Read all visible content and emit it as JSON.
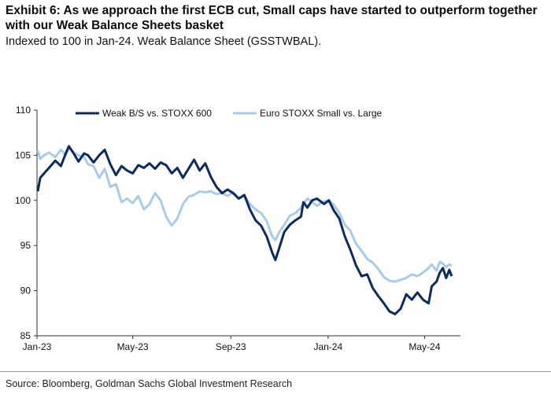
{
  "header": {
    "title": "Exhibit 6: As we approach the first ECB cut, Small caps have started to outperform together with our Weak Balance Sheets basket",
    "subtitle": "Indexed to 100 in Jan-24. Weak Balance Sheet (GSSTWBAL)."
  },
  "footer": {
    "source": "Source: Bloomberg, Goldman Sachs Global Investment Research"
  },
  "chart_data": {
    "type": "line",
    "title": "",
    "xlabel": "",
    "ylabel": "",
    "x_tick_labels": [
      "Jan-23",
      "May-23",
      "Sep-23",
      "Jan-24",
      "May-24"
    ],
    "y_ticks": [
      85,
      90,
      95,
      100,
      105,
      110
    ],
    "ylim": [
      85,
      110
    ],
    "xlim": [
      "2023-01-01",
      "2024-06-15"
    ],
    "grid": false,
    "legend_position": "top-left",
    "series": [
      {
        "name": "Weak B/S vs. STOXX 600",
        "color": "#0d2b5c",
        "points": [
          [
            "2023-01-02",
            101.0
          ],
          [
            "2023-01-05",
            102.5
          ],
          [
            "2023-01-10",
            103.0
          ],
          [
            "2023-01-16",
            103.6
          ],
          [
            "2023-01-24",
            104.4
          ],
          [
            "2023-01-31",
            103.8
          ],
          [
            "2023-02-06",
            105.2
          ],
          [
            "2023-02-10",
            106.0
          ],
          [
            "2023-02-16",
            105.2
          ],
          [
            "2023-02-22",
            104.3
          ],
          [
            "2023-03-01",
            105.2
          ],
          [
            "2023-03-06",
            105.0
          ],
          [
            "2023-03-13",
            104.2
          ],
          [
            "2023-03-20",
            105.0
          ],
          [
            "2023-03-27",
            105.6
          ],
          [
            "2023-04-03",
            104.0
          ],
          [
            "2023-04-10",
            102.8
          ],
          [
            "2023-04-17",
            103.8
          ],
          [
            "2023-04-24",
            103.3
          ],
          [
            "2023-05-01",
            103.0
          ],
          [
            "2023-05-08",
            103.9
          ],
          [
            "2023-05-15",
            103.6
          ],
          [
            "2023-05-22",
            104.1
          ],
          [
            "2023-05-29",
            103.5
          ],
          [
            "2023-06-05",
            104.2
          ],
          [
            "2023-06-12",
            103.9
          ],
          [
            "2023-06-19",
            103.0
          ],
          [
            "2023-06-26",
            103.6
          ],
          [
            "2023-07-03",
            102.5
          ],
          [
            "2023-07-10",
            103.5
          ],
          [
            "2023-07-17",
            104.5
          ],
          [
            "2023-07-24",
            103.3
          ],
          [
            "2023-07-31",
            104.1
          ],
          [
            "2023-08-07",
            102.6
          ],
          [
            "2023-08-14",
            101.5
          ],
          [
            "2023-08-21",
            100.8
          ],
          [
            "2023-08-28",
            101.2
          ],
          [
            "2023-09-04",
            100.8
          ],
          [
            "2023-09-11",
            100.2
          ],
          [
            "2023-09-18",
            100.6
          ],
          [
            "2023-09-25",
            99.0
          ],
          [
            "2023-10-02",
            97.8
          ],
          [
            "2023-10-09",
            97.2
          ],
          [
            "2023-10-16",
            96.0
          ],
          [
            "2023-10-23",
            94.2
          ],
          [
            "2023-10-27",
            93.4
          ],
          [
            "2023-11-01",
            94.8
          ],
          [
            "2023-11-07",
            96.5
          ],
          [
            "2023-11-14",
            97.3
          ],
          [
            "2023-11-21",
            97.8
          ],
          [
            "2023-11-28",
            98.2
          ],
          [
            "2023-12-01",
            99.8
          ],
          [
            "2023-12-06",
            99.2
          ],
          [
            "2023-12-12",
            100.0
          ],
          [
            "2023-12-18",
            100.2
          ],
          [
            "2023-12-27",
            99.6
          ],
          [
            "2024-01-02",
            100.0
          ],
          [
            "2024-01-08",
            98.9
          ],
          [
            "2024-01-15",
            98.0
          ],
          [
            "2024-01-22",
            96.0
          ],
          [
            "2024-01-29",
            94.5
          ],
          [
            "2024-02-05",
            92.8
          ],
          [
            "2024-02-12",
            91.6
          ],
          [
            "2024-02-19",
            91.8
          ],
          [
            "2024-02-26",
            90.3
          ],
          [
            "2024-03-04",
            89.4
          ],
          [
            "2024-03-11",
            88.6
          ],
          [
            "2024-03-18",
            87.7
          ],
          [
            "2024-03-25",
            87.4
          ],
          [
            "2024-04-01",
            88.0
          ],
          [
            "2024-04-08",
            89.6
          ],
          [
            "2024-04-15",
            89.0
          ],
          [
            "2024-04-22",
            89.8
          ],
          [
            "2024-04-29",
            89.0
          ],
          [
            "2024-05-06",
            88.6
          ],
          [
            "2024-05-10",
            90.5
          ],
          [
            "2024-05-16",
            91.0
          ],
          [
            "2024-05-20",
            92.0
          ],
          [
            "2024-05-24",
            92.5
          ],
          [
            "2024-05-28",
            91.4
          ],
          [
            "2024-06-01",
            92.3
          ],
          [
            "2024-06-04",
            91.6
          ]
        ]
      },
      {
        "name": "Euro STOXX Small vs. Large",
        "color": "#a9cbe8",
        "points": [
          [
            "2023-01-02",
            105.5
          ],
          [
            "2023-01-05",
            104.6
          ],
          [
            "2023-01-10",
            105.0
          ],
          [
            "2023-01-16",
            105.3
          ],
          [
            "2023-01-24",
            104.8
          ],
          [
            "2023-01-31",
            105.6
          ],
          [
            "2023-02-06",
            105.0
          ],
          [
            "2023-02-10",
            105.8
          ],
          [
            "2023-02-16",
            105.3
          ],
          [
            "2023-02-22",
            105.0
          ],
          [
            "2023-03-01",
            104.8
          ],
          [
            "2023-03-06",
            104.0
          ],
          [
            "2023-03-13",
            103.8
          ],
          [
            "2023-03-20",
            102.5
          ],
          [
            "2023-03-27",
            103.5
          ],
          [
            "2023-04-03",
            101.5
          ],
          [
            "2023-04-10",
            101.8
          ],
          [
            "2023-04-17",
            99.8
          ],
          [
            "2023-04-24",
            100.2
          ],
          [
            "2023-05-01",
            99.7
          ],
          [
            "2023-05-08",
            100.5
          ],
          [
            "2023-05-15",
            99.0
          ],
          [
            "2023-05-22",
            99.6
          ],
          [
            "2023-05-29",
            100.8
          ],
          [
            "2023-06-05",
            100.0
          ],
          [
            "2023-06-12",
            98.2
          ],
          [
            "2023-06-19",
            97.2
          ],
          [
            "2023-06-26",
            98.0
          ],
          [
            "2023-07-03",
            99.6
          ],
          [
            "2023-07-10",
            100.4
          ],
          [
            "2023-07-17",
            100.6
          ],
          [
            "2023-07-24",
            101.0
          ],
          [
            "2023-07-31",
            100.9
          ],
          [
            "2023-08-07",
            101.0
          ],
          [
            "2023-08-14",
            100.7
          ],
          [
            "2023-08-21",
            100.8
          ],
          [
            "2023-08-28",
            100.5
          ],
          [
            "2023-09-04",
            100.9
          ],
          [
            "2023-09-11",
            100.2
          ],
          [
            "2023-09-18",
            100.5
          ],
          [
            "2023-09-25",
            99.6
          ],
          [
            "2023-10-02",
            99.0
          ],
          [
            "2023-10-09",
            98.6
          ],
          [
            "2023-10-16",
            97.7
          ],
          [
            "2023-10-23",
            96.0
          ],
          [
            "2023-10-27",
            95.6
          ],
          [
            "2023-11-01",
            96.5
          ],
          [
            "2023-11-07",
            97.3
          ],
          [
            "2023-11-14",
            98.3
          ],
          [
            "2023-11-21",
            98.6
          ],
          [
            "2023-11-28",
            99.2
          ],
          [
            "2023-12-01",
            99.6
          ],
          [
            "2023-12-06",
            100.2
          ],
          [
            "2023-12-12",
            99.8
          ],
          [
            "2023-12-18",
            99.4
          ],
          [
            "2023-12-27",
            99.9
          ],
          [
            "2024-01-02",
            100.0
          ],
          [
            "2024-01-08",
            99.5
          ],
          [
            "2024-01-15",
            98.6
          ],
          [
            "2024-01-22",
            97.3
          ],
          [
            "2024-01-29",
            96.6
          ],
          [
            "2024-02-05",
            95.2
          ],
          [
            "2024-02-12",
            94.4
          ],
          [
            "2024-02-19",
            93.5
          ],
          [
            "2024-02-26",
            93.1
          ],
          [
            "2024-03-04",
            92.4
          ],
          [
            "2024-03-11",
            91.5
          ],
          [
            "2024-03-18",
            91.1
          ],
          [
            "2024-03-25",
            91.0
          ],
          [
            "2024-04-01",
            91.2
          ],
          [
            "2024-04-08",
            91.4
          ],
          [
            "2024-04-15",
            91.8
          ],
          [
            "2024-04-22",
            91.6
          ],
          [
            "2024-04-29",
            92.0
          ],
          [
            "2024-05-06",
            92.5
          ],
          [
            "2024-05-10",
            92.9
          ],
          [
            "2024-05-16",
            92.2
          ],
          [
            "2024-05-20",
            93.2
          ],
          [
            "2024-05-24",
            93.0
          ],
          [
            "2024-05-28",
            92.6
          ],
          [
            "2024-06-01",
            92.9
          ],
          [
            "2024-06-04",
            92.8
          ]
        ]
      }
    ]
  }
}
